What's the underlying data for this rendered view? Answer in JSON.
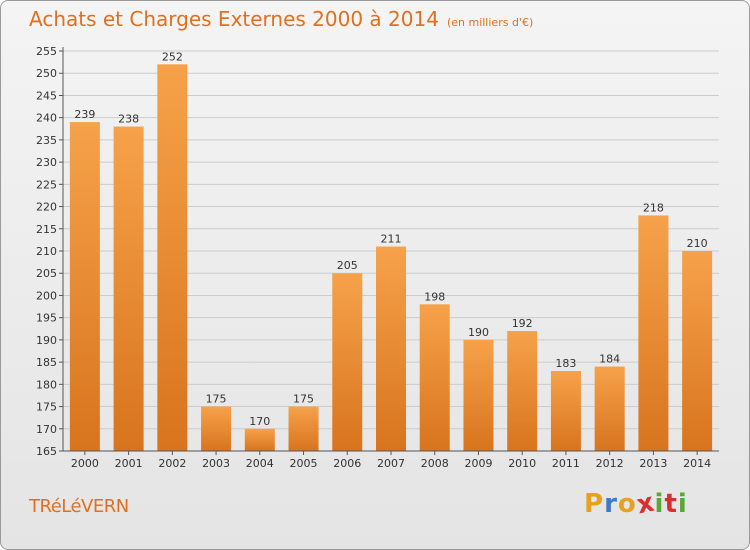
{
  "header": {
    "title": "Achats et Charges Externes 2000 à 2014",
    "subtitle": "(en milliers d'€)"
  },
  "footer": {
    "city": "TRéLéVERN",
    "logo_letters": [
      "P",
      "r",
      "o",
      "x",
      "i",
      "t",
      "i"
    ],
    "logo_colors": [
      "#e8a020",
      "#3a7ac8",
      "#e8a020",
      "#d83030",
      "#58a838",
      "#d83030",
      "#58a838"
    ]
  },
  "colors": {
    "bar_top": "#f6a24a",
    "bar_bottom": "#d8741e",
    "grid": "#cccccc",
    "accent": "#e07020"
  },
  "chart_data": {
    "type": "bar",
    "title": "Achats et Charges Externes 2000 à 2014",
    "subtitle": "(en milliers d'€)",
    "categories": [
      "2000",
      "2001",
      "2002",
      "2003",
      "2004",
      "2005",
      "2006",
      "2007",
      "2008",
      "2009",
      "2010",
      "2011",
      "2012",
      "2013",
      "2014"
    ],
    "values": [
      239,
      238,
      252,
      175,
      170,
      175,
      205,
      211,
      198,
      190,
      192,
      183,
      184,
      218,
      210
    ],
    "ylim": [
      165,
      255
    ],
    "yticks": [
      165,
      170,
      175,
      180,
      185,
      190,
      195,
      200,
      205,
      210,
      215,
      220,
      225,
      230,
      235,
      240,
      245,
      250,
      255
    ],
    "grid": true,
    "xlabel": "",
    "ylabel": ""
  }
}
